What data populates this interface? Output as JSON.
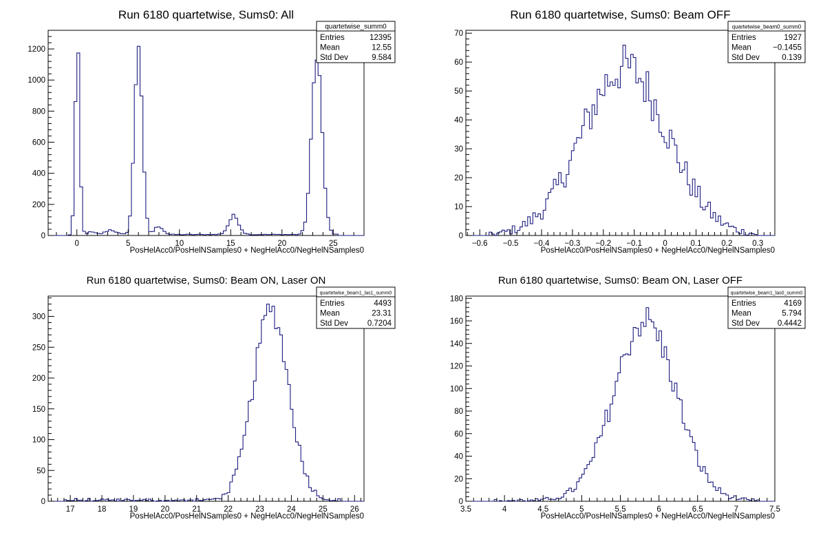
{
  "chart_data": [
    {
      "type": "histogram",
      "title": "Run 6180 quartetwise, Sums0: All",
      "xlabel": "PosHelAcc0/PosHelNSamples0 + NegHelAcc0/NegHelNSamples0",
      "xlim": [
        -2.8,
        28
      ],
      "ylim": [
        0,
        1320
      ],
      "xticks": [
        0,
        5,
        10,
        15,
        20,
        25
      ],
      "yticks": [
        0,
        200,
        400,
        600,
        800,
        1000,
        1200
      ],
      "stats": {
        "name": "quartetwise_summ0",
        "entries_label": "Entries",
        "entries": "12395",
        "mean_label": "Mean",
        "mean": "12.55",
        "std_label": "Std Dev",
        "std": "9.584"
      },
      "peaks": [
        {
          "center": 0.05,
          "height": 1230,
          "width": 0.22
        },
        {
          "center": 1.4,
          "height": 15,
          "width": 0.4
        },
        {
          "center": 3.3,
          "height": 30,
          "width": 0.5
        },
        {
          "center": 6.0,
          "height": 1230,
          "width": 0.38
        },
        {
          "center": 8.0,
          "height": 55,
          "width": 0.4
        },
        {
          "center": 15.3,
          "height": 120,
          "width": 0.5
        },
        {
          "center": 23.4,
          "height": 1160,
          "width": 0.5
        }
      ],
      "baseline": 6
    },
    {
      "type": "histogram",
      "title": "Run 6180 quartetwise, Sums0: Beam OFF",
      "xlabel": "PosHelAcc0/PosHelNSamples0 + NegHelAcc0/NegHelNSamples0",
      "xlim": [
        -0.645,
        0.355
      ],
      "ylim": [
        0,
        71
      ],
      "xticks": [
        -0.6,
        -0.5,
        -0.4,
        -0.3,
        -0.2,
        -0.1,
        0,
        0.1,
        0.2,
        0.3
      ],
      "yticks": [
        0,
        10,
        20,
        30,
        40,
        50,
        60,
        70
      ],
      "stats": {
        "name": "quartetwise_beam0_summ0",
        "entries_label": "Entries",
        "entries": "1927",
        "mean_label": "Mean",
        "mean": "−0.1455",
        "std_label": "Std Dev",
        "std": "0.139"
      },
      "gauss": {
        "mean": -0.13,
        "sigma": 0.139,
        "height": 58,
        "range": [
          -0.58,
          0.3
        ]
      }
    },
    {
      "type": "histogram",
      "title": "Run 6180 quartetwise, Sums0: Beam ON, Laser ON",
      "xlabel": "PosHelAcc0/PosHelNSamples0 + NegHelAcc0/NegHelNSamples0",
      "xlim": [
        16.3,
        26.3
      ],
      "ylim": [
        0,
        333
      ],
      "xticks": [
        17,
        18,
        19,
        20,
        21,
        22,
        23,
        24,
        25,
        26
      ],
      "yticks": [
        0,
        50,
        100,
        150,
        200,
        250,
        300
      ],
      "stats": {
        "name": "quartetwise_beam1_las1_summ0",
        "entries_label": "Entries",
        "entries": "4493",
        "mean_label": "Mean",
        "mean": "23.31",
        "std_label": "Std Dev",
        "std": "0.7204"
      },
      "gauss": {
        "mean": 23.35,
        "sigma": 0.56,
        "height": 310,
        "range": [
          16.8,
          25.6
        ],
        "tail": 3
      }
    },
    {
      "type": "histogram",
      "title": "Run 6180 quartetwise, Sums0: Beam ON, Laser OFF",
      "xlabel": "PosHelAcc0/PosHelNSamples0 + NegHelAcc0/NegHelNSamples0",
      "xlim": [
        3.5,
        7.5
      ],
      "ylim": [
        0,
        182
      ],
      "xticks": [
        3.5,
        4,
        4.5,
        5,
        5.5,
        6,
        6.5,
        7,
        7.5
      ],
      "yticks": [
        0,
        20,
        40,
        60,
        80,
        100,
        120,
        140,
        160,
        180
      ],
      "stats": {
        "name": "quartetwise_beam1_las0_summ0",
        "entries_label": "Entries",
        "entries": "4169",
        "mean_label": "Mean",
        "mean": "5.794",
        "std_label": "Std Dev",
        "std": "0.4442"
      },
      "gauss": {
        "mean": 5.82,
        "sigma": 0.4,
        "height": 160,
        "range": [
          3.85,
          7.3
        ],
        "tail": 1
      }
    }
  ]
}
